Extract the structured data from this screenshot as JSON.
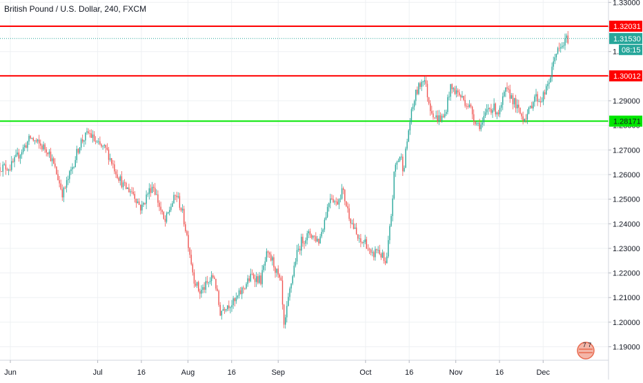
{
  "header": {
    "title": "British Pound / U.S. Dollar, 240, FXCM"
  },
  "colors": {
    "up": "#26a69a",
    "down": "#ef5350",
    "resistance": "#ff0000",
    "support": "#00e600",
    "price_line": "#26a69a",
    "grid": "#eef0f3",
    "axis_text": "#131722"
  },
  "logo": {
    "icon": "tradingview-logo-icon",
    "text": "7 7"
  },
  "chart_data": {
    "type": "candlestick",
    "title": "British Pound / U.S. Dollar, 240, FXCM",
    "ylim": [
      1.186,
      1.335
    ],
    "y_ticks": [
      "1.19000",
      "1.20000",
      "1.21000",
      "1.22000",
      "1.23000",
      "1.24000",
      "1.25000",
      "1.26000",
      "1.27000",
      "1.28000",
      "1.29000",
      "1.30000",
      "1.31000",
      "1.32000",
      "1.33000"
    ],
    "x_ticks": [
      {
        "label": "Jun",
        "date": "2019-06-01"
      },
      {
        "label": "Jul",
        "date": "2019-07-01"
      },
      {
        "label": "16",
        "date": "2019-07-16"
      },
      {
        "label": "Aug",
        "date": "2019-08-01"
      },
      {
        "label": "16",
        "date": "2019-08-16"
      },
      {
        "label": "Sep",
        "date": "2019-09-01"
      },
      {
        "label": "Oct",
        "date": "2019-10-01"
      },
      {
        "label": "16",
        "date": "2019-10-16"
      },
      {
        "label": "Nov",
        "date": "2019-11-01"
      },
      {
        "label": "16",
        "date": "2019-11-16"
      },
      {
        "label": "Dec",
        "date": "2019-12-01"
      }
    ],
    "x_range": [
      "2019-06-01",
      "2019-12-11"
    ],
    "price_path": [
      [
        "2019-06-01",
        1.263
      ],
      [
        "2019-06-05",
        1.27
      ],
      [
        "2019-06-08",
        1.275
      ],
      [
        "2019-06-11",
        1.272
      ],
      [
        "2019-06-14",
        1.27
      ],
      [
        "2019-06-17",
        1.26
      ],
      [
        "2019-06-19",
        1.252
      ],
      [
        "2019-06-22",
        1.262
      ],
      [
        "2019-06-25",
        1.273
      ],
      [
        "2019-06-28",
        1.277
      ],
      [
        "2019-07-01",
        1.272
      ],
      [
        "2019-07-04",
        1.27
      ],
      [
        "2019-07-07",
        1.262
      ],
      [
        "2019-07-10",
        1.255
      ],
      [
        "2019-07-13",
        1.253
      ],
      [
        "2019-07-16",
        1.246
      ],
      [
        "2019-07-18",
        1.252
      ],
      [
        "2019-07-20",
        1.256
      ],
      [
        "2019-07-22",
        1.248
      ],
      [
        "2019-07-24",
        1.24
      ],
      [
        "2019-07-26",
        1.247
      ],
      [
        "2019-07-28",
        1.252
      ],
      [
        "2019-07-30",
        1.245
      ],
      [
        "2019-08-01",
        1.233
      ],
      [
        "2019-08-03",
        1.218
      ],
      [
        "2019-08-05",
        1.212
      ],
      [
        "2019-08-08",
        1.216
      ],
      [
        "2019-08-10",
        1.219
      ],
      [
        "2019-08-12",
        1.204
      ],
      [
        "2019-08-14",
        1.207
      ],
      [
        "2019-08-17",
        1.208
      ],
      [
        "2019-08-20",
        1.214
      ],
      [
        "2019-08-23",
        1.219
      ],
      [
        "2019-08-26",
        1.217
      ],
      [
        "2019-08-28",
        1.227
      ],
      [
        "2019-08-30",
        1.225
      ],
      [
        "2019-09-02",
        1.215
      ],
      [
        "2019-09-03",
        1.197
      ],
      [
        "2019-09-05",
        1.213
      ],
      [
        "2019-09-07",
        1.226
      ],
      [
        "2019-09-09",
        1.233
      ],
      [
        "2019-09-12",
        1.236
      ],
      [
        "2019-09-15",
        1.233
      ],
      [
        "2019-09-17",
        1.242
      ],
      [
        "2019-09-19",
        1.252
      ],
      [
        "2019-09-21",
        1.248
      ],
      [
        "2019-09-23",
        1.254
      ],
      [
        "2019-09-25",
        1.245
      ],
      [
        "2019-09-27",
        1.238
      ],
      [
        "2019-09-29",
        1.232
      ],
      [
        "2019-10-01",
        1.233
      ],
      [
        "2019-10-03",
        1.226
      ],
      [
        "2019-10-05",
        1.23
      ],
      [
        "2019-10-07",
        1.226
      ],
      [
        "2019-10-08",
        1.222
      ],
      [
        "2019-10-10",
        1.246
      ],
      [
        "2019-10-11",
        1.263
      ],
      [
        "2019-10-13",
        1.268
      ],
      [
        "2019-10-14",
        1.262
      ],
      [
        "2019-10-16",
        1.28
      ],
      [
        "2019-10-18",
        1.292
      ],
      [
        "2019-10-21",
        1.3
      ],
      [
        "2019-10-23",
        1.288
      ],
      [
        "2019-10-25",
        1.283
      ],
      [
        "2019-10-28",
        1.283
      ],
      [
        "2019-10-30",
        1.295
      ],
      [
        "2019-11-01",
        1.294
      ],
      [
        "2019-11-04",
        1.29
      ],
      [
        "2019-11-06",
        1.287
      ],
      [
        "2019-11-08",
        1.281
      ],
      [
        "2019-11-10",
        1.28
      ],
      [
        "2019-11-12",
        1.287
      ],
      [
        "2019-11-14",
        1.287
      ],
      [
        "2019-11-16",
        1.285
      ],
      [
        "2019-11-18",
        1.294
      ],
      [
        "2019-11-20",
        1.292
      ],
      [
        "2019-11-22",
        1.287
      ],
      [
        "2019-11-24",
        1.283
      ],
      [
        "2019-11-26",
        1.285
      ],
      [
        "2019-11-28",
        1.292
      ],
      [
        "2019-11-30",
        1.29
      ],
      [
        "2019-12-02",
        1.294
      ],
      [
        "2019-12-04",
        1.302
      ],
      [
        "2019-12-05",
        1.309
      ],
      [
        "2019-12-07",
        1.311
      ],
      [
        "2019-12-09",
        1.315
      ],
      [
        "2019-12-10",
        1.3153
      ]
    ],
    "horizontal_levels": [
      {
        "price": 1.32031,
        "label": "1.32031",
        "kind": "resistance"
      },
      {
        "price": 1.30012,
        "label": "1.30012",
        "kind": "resistance"
      },
      {
        "price": 1.28171,
        "label": "1.28171",
        "kind": "support"
      }
    ],
    "last_price": {
      "price": 1.3153,
      "label": "1.31530",
      "countdown": "08:15"
    },
    "grid": true
  }
}
